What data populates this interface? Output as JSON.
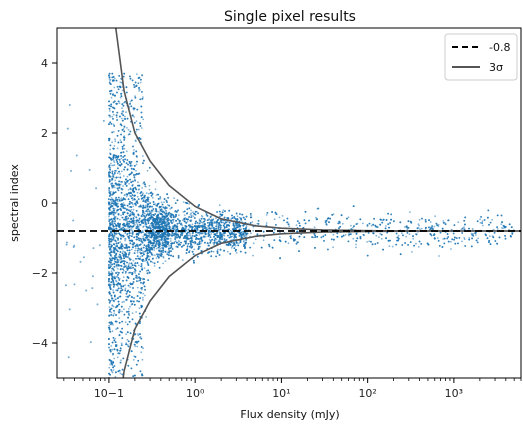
{
  "chart_data": {
    "type": "scatter",
    "title": "Single pixel results",
    "xlabel": "Flux density (mJy)",
    "ylabel": "spectral index",
    "xscale": "log",
    "xlim": [
      0.025,
      6000
    ],
    "ylim": [
      -5.0,
      5.0
    ],
    "x_ticks": [
      {
        "value": 0.1,
        "label": "10−1"
      },
      {
        "value": 1,
        "label": "10⁰"
      },
      {
        "value": 10,
        "label": "10¹"
      },
      {
        "value": 100,
        "label": "10²"
      },
      {
        "value": 1000,
        "label": "10³"
      }
    ],
    "y_ticks": [
      {
        "value": -4,
        "label": "−4"
      },
      {
        "value": -2,
        "label": "−2"
      },
      {
        "value": 0,
        "label": "0"
      },
      {
        "value": 2,
        "label": "2"
      },
      {
        "value": 4,
        "label": "4"
      }
    ],
    "grid": false,
    "legend_position": "top-right",
    "series": [
      {
        "kind": "points",
        "color": "#1f77b4",
        "x_range": [
          0.1,
          6000
        ],
        "y_center": -0.8,
        "density": "very dense near 0.1-0.3 mJy with spread decreasing with flux, converging toward -0.8 at high flux"
      },
      {
        "kind": "hline",
        "name": "-0.8",
        "value": -0.8,
        "color": "#000000",
        "style": "dashed"
      },
      {
        "kind": "curve",
        "name": "3σ",
        "color": "#555555",
        "style": "solid",
        "center": -0.8,
        "points": [
          [
            0.12,
            5.0
          ],
          [
            0.15,
            3.2
          ],
          [
            0.2,
            2.0
          ],
          [
            0.3,
            1.2
          ],
          [
            0.5,
            0.5
          ],
          [
            1,
            -0.1
          ],
          [
            2,
            -0.45
          ],
          [
            5,
            -0.65
          ],
          [
            10,
            -0.72
          ],
          [
            30,
            -0.77
          ],
          [
            100,
            -0.79
          ],
          [
            1000,
            -0.8
          ],
          [
            6000,
            -0.8
          ]
        ]
      }
    ]
  },
  "legend": {
    "entries": [
      {
        "label": "-0.8"
      },
      {
        "label": "3σ"
      }
    ]
  }
}
